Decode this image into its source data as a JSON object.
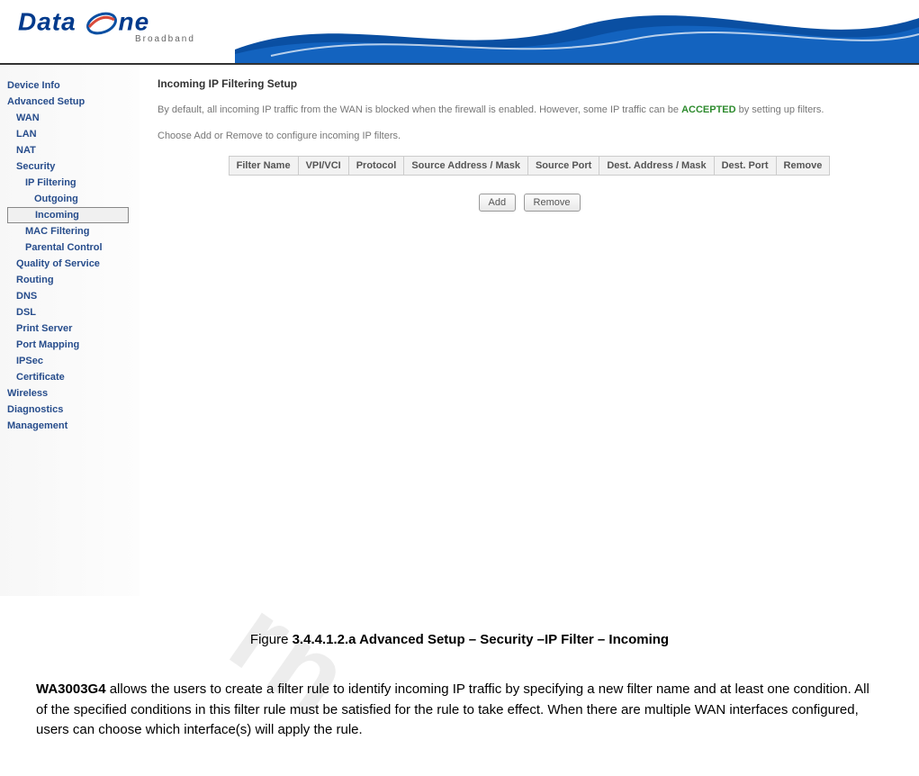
{
  "header": {
    "logo_data": "Data",
    "logo_one": "ne",
    "logo_sub": "Broadband",
    "swoosh_colors": [
      "#0a4fa2",
      "#1566c4",
      "#ffffff"
    ],
    "divider_color": "#333333"
  },
  "sidebar": {
    "items": [
      {
        "label": "Device Info",
        "level": 1,
        "selected": false
      },
      {
        "label": "Advanced Setup",
        "level": 1,
        "selected": false
      },
      {
        "label": "WAN",
        "level": 2,
        "selected": false
      },
      {
        "label": "LAN",
        "level": 2,
        "selected": false
      },
      {
        "label": "NAT",
        "level": 2,
        "selected": false
      },
      {
        "label": "Security",
        "level": 2,
        "selected": false
      },
      {
        "label": "IP Filtering",
        "level": 3,
        "selected": false
      },
      {
        "label": "Outgoing",
        "level": 4,
        "selected": false
      },
      {
        "label": "Incoming",
        "level": 4,
        "selected": true
      },
      {
        "label": "MAC Filtering",
        "level": 3,
        "selected": false
      },
      {
        "label": "Parental Control",
        "level": 3,
        "selected": false
      },
      {
        "label": "Quality of Service",
        "level": 2,
        "selected": false
      },
      {
        "label": "Routing",
        "level": 2,
        "selected": false
      },
      {
        "label": "DNS",
        "level": 2,
        "selected": false
      },
      {
        "label": "DSL",
        "level": 2,
        "selected": false
      },
      {
        "label": "Print Server",
        "level": 2,
        "selected": false
      },
      {
        "label": "Port Mapping",
        "level": 2,
        "selected": false
      },
      {
        "label": "IPSec",
        "level": 2,
        "selected": false
      },
      {
        "label": "Certificate",
        "level": 2,
        "selected": false
      },
      {
        "label": "Wireless",
        "level": 1,
        "selected": false
      },
      {
        "label": "Diagnostics",
        "level": 1,
        "selected": false
      },
      {
        "label": "Management",
        "level": 1,
        "selected": false
      }
    ],
    "text_color": "#274d8c",
    "font_size": 11
  },
  "main": {
    "title": "Incoming IP Filtering Setup",
    "intro_pre": "By default, all incoming IP traffic from the WAN is blocked when the firewall is enabled. However, some IP traffic can be ",
    "intro_accepted": "ACCEPTED",
    "intro_post": " by setting up filters.",
    "instruction": "Choose Add or Remove to configure incoming IP filters.",
    "table": {
      "columns": [
        "Filter Name",
        "VPI/VCI",
        "Protocol",
        "Source Address / Mask",
        "Source Port",
        "Dest. Address / Mask",
        "Dest. Port",
        "Remove"
      ],
      "header_bg": "#f2f2f2",
      "border_color": "#cccccc",
      "font_size": 11
    },
    "buttons": {
      "add": "Add",
      "remove": "Remove"
    }
  },
  "caption": {
    "prefix": "Figure ",
    "bold": "3.4.4.1.2.a Advanced Setup – Security –IP Filter – Incoming",
    "font_size": 15
  },
  "paragraph": {
    "bold_lead": "WA3003G4",
    "text": " allows the users to create a filter rule to identify incoming IP traffic by specifying a new filter name and at least one condition. All of the specified conditions in this filter rule must be satisfied for the rule to take effect. When there are multiple WAN interfaces configured, users can choose which interface(s) will apply the rule.",
    "font_size": 15
  },
  "colors": {
    "accepted_text": "#2e8b2e",
    "nav_link": "#274d8c",
    "body_text": "#777777",
    "page_bg": "#ffffff"
  }
}
